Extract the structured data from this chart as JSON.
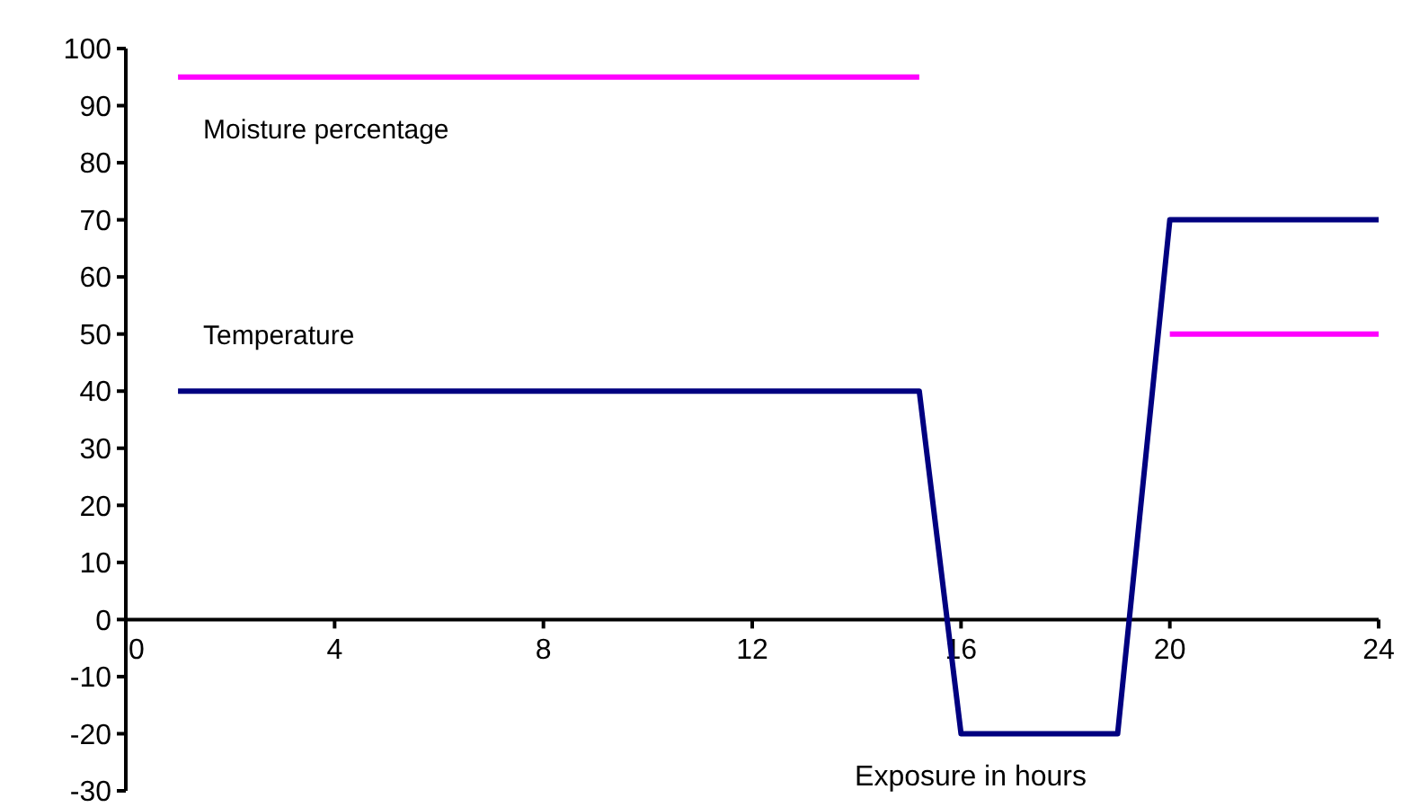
{
  "chart_data": {
    "type": "line",
    "xlabel": "Exposure in hours",
    "xlim": [
      0,
      24
    ],
    "xticks": [
      0,
      4,
      8,
      12,
      16,
      20,
      24
    ],
    "ylim": [
      -30,
      100
    ],
    "yticks": [
      -30,
      -20,
      -10,
      0,
      10,
      20,
      30,
      40,
      50,
      60,
      70,
      80,
      90,
      100
    ],
    "grid": false,
    "marker": "none",
    "series": [
      {
        "name": "Moisture percentage",
        "color": "#ff00ff",
        "x": [
          1,
          15.2,
          17.5,
          20,
          24
        ],
        "values": [
          95,
          95,
          null,
          50,
          50
        ]
      },
      {
        "name": "Temperature",
        "color": "#000080",
        "x": [
          1,
          15.2,
          16,
          19,
          20,
          24
        ],
        "values": [
          40,
          40,
          -20,
          -20,
          70,
          70
        ]
      }
    ]
  }
}
